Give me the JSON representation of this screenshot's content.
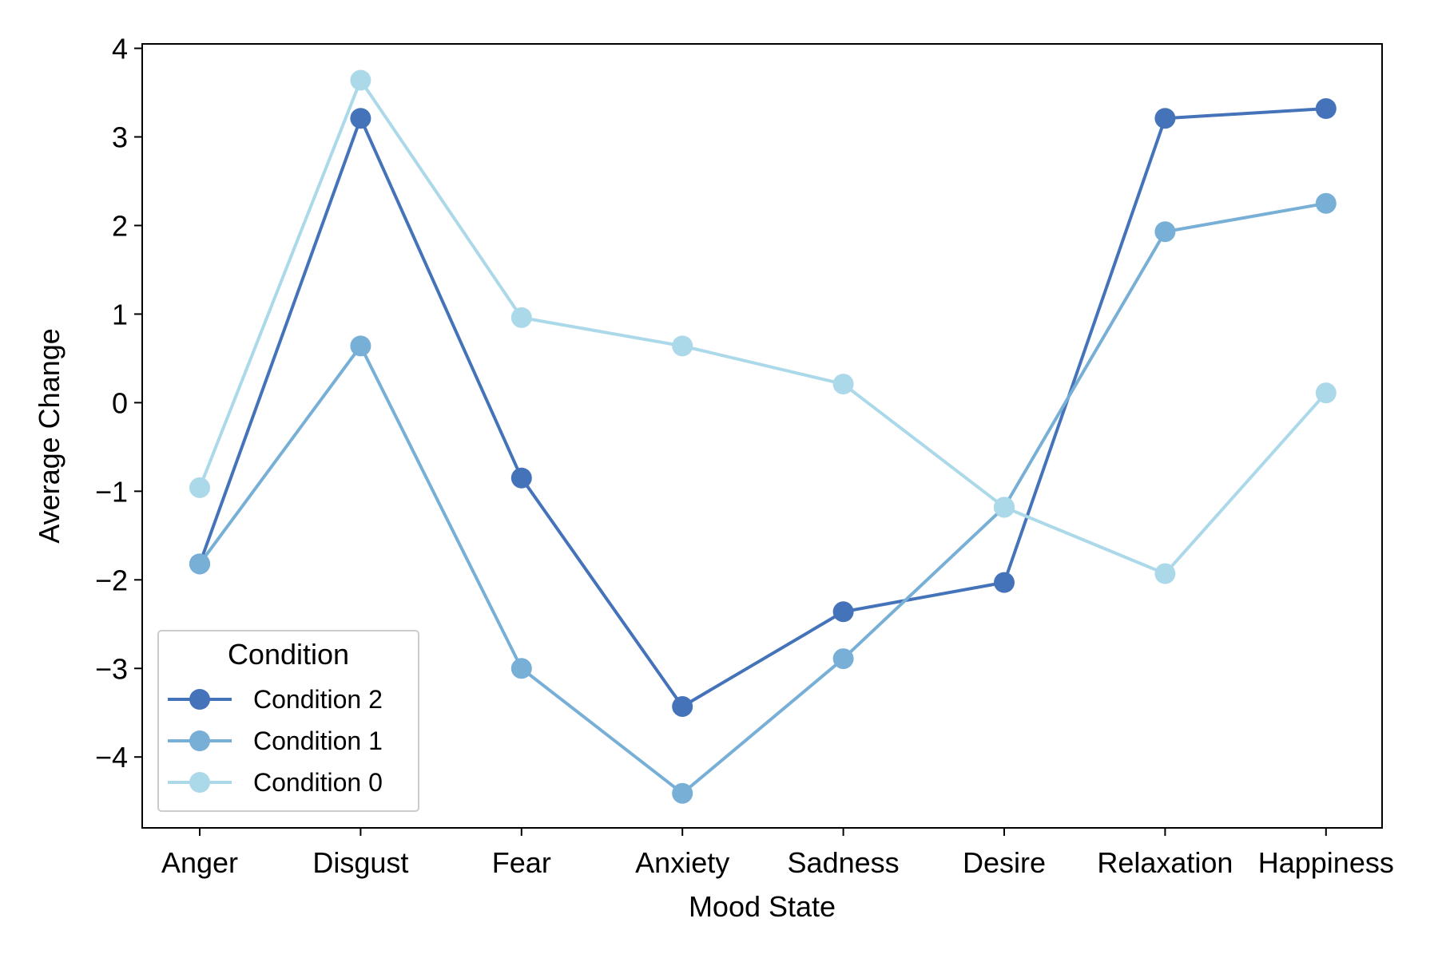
{
  "chart_data": {
    "type": "line",
    "title": "",
    "xlabel": "Mood State",
    "ylabel": "Average Change",
    "categories": [
      "Anger",
      "Disgust",
      "Fear",
      "Anxiety",
      "Sadness",
      "Desire",
      "Relaxation",
      "Happiness"
    ],
    "ylim": [
      -4.8,
      4.05
    ],
    "yticks": [
      4,
      3,
      2,
      1,
      0,
      -1,
      -2,
      -3,
      -4
    ],
    "ytick_labels": [
      "4",
      "3",
      "2",
      "1",
      "0",
      "−1",
      "−2",
      "−3",
      "−4"
    ],
    "grid": false,
    "legend": {
      "title": "Condition",
      "placement": "lower-left"
    },
    "series": [
      {
        "name": "Condition 2",
        "color": "#4573b9",
        "values": [
          -1.82,
          3.21,
          -0.85,
          -3.43,
          -2.36,
          -2.03,
          3.21,
          3.32
        ]
      },
      {
        "name": "Condition 1",
        "color": "#77afd6",
        "values": [
          -1.82,
          0.64,
          -3.0,
          -4.41,
          -2.89,
          -1.18,
          1.93,
          2.25
        ]
      },
      {
        "name": "Condition 0",
        "color": "#acd9ea",
        "values": [
          -0.96,
          3.64,
          0.96,
          0.64,
          0.21,
          -1.18,
          -1.93,
          0.11
        ]
      }
    ]
  }
}
